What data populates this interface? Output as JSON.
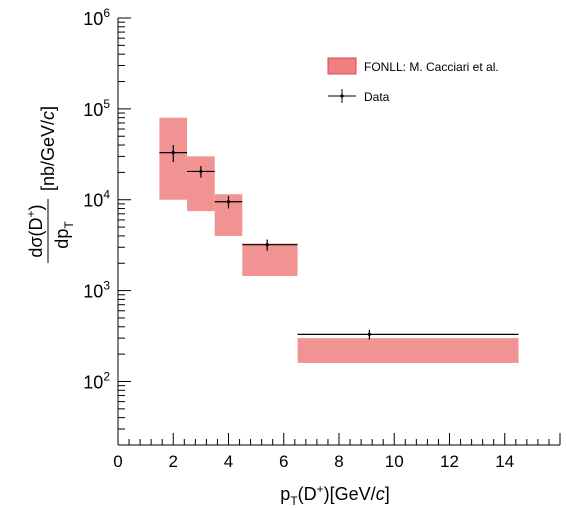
{
  "chart_data": {
    "type": "scatter",
    "title": "",
    "xlabel": "p_T(D^+)[GeV/c]",
    "ylabel": "dσ(D^+)/dp_T [nb/GeV/c]",
    "x_axis": {
      "min": 0,
      "max": 16,
      "scale": "linear",
      "ticks": [
        0,
        2,
        4,
        6,
        8,
        10,
        12,
        14
      ]
    },
    "y_axis": {
      "min": 20,
      "max": 1000000,
      "scale": "log",
      "ticks": [
        100,
        1000,
        10000,
        100000,
        1000000
      ]
    },
    "grid": false,
    "legend": {
      "placement": "top-right",
      "entries": [
        {
          "label": "FONLL: M. Cacciari et al.",
          "style": "band",
          "color": "#f08080"
        },
        {
          "label": "Data",
          "style": "marker",
          "color": "#000000"
        }
      ]
    },
    "series": [
      {
        "name": "FONLL: M. Cacciari et al.",
        "type": "band",
        "color": "#f08080",
        "boxes": [
          {
            "x_low": 1.5,
            "x_high": 2.5,
            "y_low": 10000,
            "y_high": 80000
          },
          {
            "x_low": 2.5,
            "x_high": 3.5,
            "y_low": 7500,
            "y_high": 30000
          },
          {
            "x_low": 3.5,
            "x_high": 4.5,
            "y_low": 4000,
            "y_high": 11500
          },
          {
            "x_low": 4.5,
            "x_high": 6.5,
            "y_low": 1450,
            "y_high": 3300
          },
          {
            "x_low": 6.5,
            "x_high": 14.5,
            "y_low": 160,
            "y_high": 300
          }
        ]
      },
      {
        "name": "Data",
        "type": "points",
        "color": "#000000",
        "points": [
          {
            "x": 2.0,
            "x_low": 1.5,
            "x_high": 2.5,
            "y": 33000,
            "y_err_low": 7000,
            "y_err_high": 7000
          },
          {
            "x": 3.0,
            "x_low": 2.5,
            "x_high": 3.5,
            "y": 20500,
            "y_err_low": 3000,
            "y_err_high": 3000
          },
          {
            "x": 4.0,
            "x_low": 3.5,
            "x_high": 4.5,
            "y": 9500,
            "y_err_low": 1500,
            "y_err_high": 1500
          },
          {
            "x": 5.4,
            "x_low": 4.5,
            "x_high": 6.5,
            "y": 3200,
            "y_err_low": 450,
            "y_err_high": 450
          },
          {
            "x": 9.1,
            "x_low": 6.5,
            "x_high": 14.5,
            "y": 330,
            "y_err_low": 40,
            "y_err_high": 40
          }
        ]
      }
    ]
  }
}
